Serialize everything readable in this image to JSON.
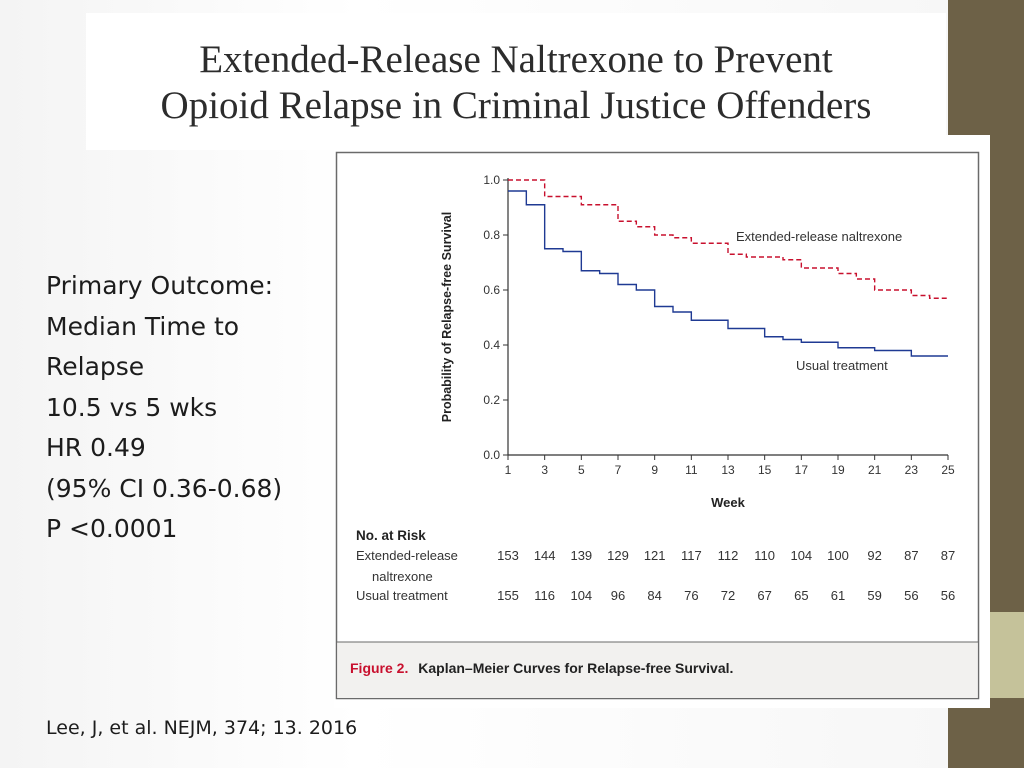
{
  "slide": {
    "title_line1": "Extended-Release Naltrexone to Prevent",
    "title_line2": "Opioid Relapse in Criminal Justice Offenders",
    "outcome_lines": [
      "Primary Outcome:",
      "Median Time to",
      "Relapse",
      "10.5 vs 5 wks",
      "HR 0.49",
      "(95% CI 0.36-0.68)",
      "P <0.0001"
    ],
    "citation": "Lee, J, et al. NEJM, 374; 13. 2016",
    "colors": {
      "accent_dark": "#6d6147",
      "accent_light": "#c5c29a"
    }
  },
  "chart_data": {
    "type": "line",
    "step": true,
    "xlabel": "Week",
    "ylabel": "Probability of Relapse-free Survival",
    "xlim": [
      1,
      25
    ],
    "ylim": [
      0,
      1.0
    ],
    "x_ticks": [
      "1",
      "3",
      "5",
      "7",
      "9",
      "11",
      "13",
      "15",
      "17",
      "19",
      "21",
      "23",
      "25"
    ],
    "y_ticks": [
      "0.0",
      "0.2",
      "0.4",
      "0.6",
      "0.8",
      "1.0"
    ],
    "grid": false,
    "series": [
      {
        "name": "Extended-release naltrexone",
        "color": "#c8102e",
        "dash": true,
        "points": [
          [
            1,
            1.0
          ],
          [
            3,
            0.94
          ],
          [
            5,
            0.91
          ],
          [
            7,
            0.85
          ],
          [
            8,
            0.83
          ],
          [
            9,
            0.8
          ],
          [
            10,
            0.79
          ],
          [
            11,
            0.77
          ],
          [
            13,
            0.73
          ],
          [
            14,
            0.72
          ],
          [
            16,
            0.71
          ],
          [
            17,
            0.68
          ],
          [
            19,
            0.66
          ],
          [
            20,
            0.64
          ],
          [
            21,
            0.6
          ],
          [
            23,
            0.58
          ],
          [
            24,
            0.57
          ],
          [
            25,
            0.57
          ]
        ]
      },
      {
        "name": "Usual treatment",
        "color": "#1f3a93",
        "dash": false,
        "points": [
          [
            1,
            0.96
          ],
          [
            2,
            0.91
          ],
          [
            3,
            0.75
          ],
          [
            4,
            0.74
          ],
          [
            5,
            0.67
          ],
          [
            6,
            0.66
          ],
          [
            7,
            0.62
          ],
          [
            8,
            0.6
          ],
          [
            9,
            0.54
          ],
          [
            10,
            0.52
          ],
          [
            11,
            0.49
          ],
          [
            13,
            0.46
          ],
          [
            15,
            0.43
          ],
          [
            16,
            0.42
          ],
          [
            17,
            0.41
          ],
          [
            19,
            0.39
          ],
          [
            21,
            0.38
          ],
          [
            23,
            0.36
          ],
          [
            25,
            0.36
          ]
        ]
      }
    ],
    "risk_table": {
      "title": "No. at Risk",
      "rows": [
        {
          "label": [
            "Extended-release",
            "naltrexone"
          ],
          "values": [
            "153",
            "144",
            "139",
            "129",
            "121",
            "117",
            "112",
            "110",
            "104",
            "100",
            "92",
            "87",
            "87"
          ]
        },
        {
          "label": [
            "Usual treatment"
          ],
          "values": [
            "155",
            "116",
            "104",
            "96",
            "84",
            "76",
            "72",
            "67",
            "65",
            "61",
            "59",
            "56",
            "56"
          ]
        }
      ]
    },
    "caption_prefix": "Figure 2.",
    "caption_text": "Kaplan–Meier Curves for Relapse-free Survival."
  }
}
